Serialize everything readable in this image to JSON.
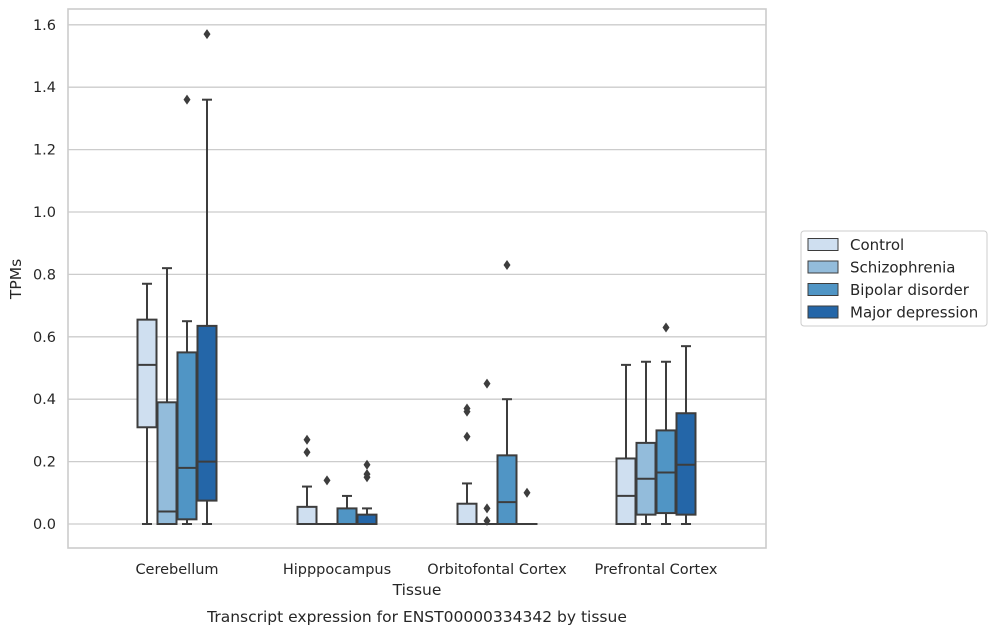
{
  "chart_data": {
    "type": "boxplot",
    "title": "Transcript expression for ENST00000334342 by tissue",
    "xlabel": "Tissue",
    "ylabel": "TPMs",
    "ylim": [
      -0.075,
      1.65
    ],
    "yticks": [
      "0.0",
      "0.2",
      "0.4",
      "0.6",
      "0.8",
      "1.0",
      "1.2",
      "1.4",
      "1.6"
    ],
    "grid": "horizontal",
    "legend_placement": "right",
    "categories": [
      "Cerebellum",
      "Hipppocampus",
      "Orbitofontal Cortex",
      "Prefrontal Cortex"
    ],
    "series": [
      {
        "name": "Control",
        "color": "#cfdff0",
        "boxes": [
          {
            "whislo": 0.0,
            "q1": 0.31,
            "med": 0.51,
            "q3": 0.655,
            "whishi": 0.77,
            "fliers": []
          },
          {
            "whislo": 0.0,
            "q1": 0.0,
            "med": 0.0,
            "q3": 0.055,
            "whishi": 0.12,
            "fliers": [
              0.23,
              0.27
            ]
          },
          {
            "whislo": 0.0,
            "q1": 0.0,
            "med": 0.0,
            "q3": 0.065,
            "whishi": 0.13,
            "fliers": [
              0.28,
              0.36,
              0.37
            ]
          },
          {
            "whislo": 0.0,
            "q1": 0.0,
            "med": 0.09,
            "q3": 0.21,
            "whishi": 0.51,
            "fliers": []
          }
        ]
      },
      {
        "name": "Schizophrenia",
        "color": "#93bcdb",
        "boxes": [
          {
            "whislo": 0.0,
            "q1": 0.0,
            "med": 0.04,
            "q3": 0.39,
            "whishi": 0.82,
            "fliers": []
          },
          {
            "whislo": 0.0,
            "q1": 0.0,
            "med": 0.0,
            "q3": 0.0,
            "whishi": 0.0,
            "fliers": [
              0.14
            ]
          },
          {
            "whislo": 0.0,
            "q1": 0.0,
            "med": 0.0,
            "q3": 0.0,
            "whishi": 0.0,
            "fliers": [
              0.01,
              0.05,
              0.45
            ]
          },
          {
            "whislo": 0.0,
            "q1": 0.03,
            "med": 0.145,
            "q3": 0.26,
            "whishi": 0.52,
            "fliers": []
          }
        ]
      },
      {
        "name": "Bipolar disorder",
        "color": "#5095c5",
        "boxes": [
          {
            "whislo": 0.0,
            "q1": 0.015,
            "med": 0.18,
            "q3": 0.55,
            "whishi": 0.65,
            "fliers": [
              1.36
            ]
          },
          {
            "whislo": 0.0,
            "q1": 0.0,
            "med": 0.0,
            "q3": 0.05,
            "whishi": 0.09,
            "fliers": []
          },
          {
            "whislo": 0.0,
            "q1": 0.0,
            "med": 0.07,
            "q3": 0.22,
            "whishi": 0.4,
            "fliers": [
              0.83
            ]
          },
          {
            "whislo": 0.0,
            "q1": 0.035,
            "med": 0.165,
            "q3": 0.3,
            "whishi": 0.52,
            "fliers": [
              0.63
            ]
          }
        ]
      },
      {
        "name": "Major depression",
        "color": "#2466a8",
        "boxes": [
          {
            "whislo": 0.0,
            "q1": 0.075,
            "med": 0.2,
            "q3": 0.635,
            "whishi": 1.36,
            "fliers": [
              1.57
            ]
          },
          {
            "whislo": 0.0,
            "q1": 0.0,
            "med": 0.0,
            "q3": 0.03,
            "whishi": 0.05,
            "fliers": [
              0.15,
              0.16,
              0.19
            ]
          },
          {
            "whislo": 0.0,
            "q1": 0.0,
            "med": 0.0,
            "q3": 0.0,
            "whishi": 0.0,
            "fliers": [
              0.1
            ]
          },
          {
            "whislo": 0.0,
            "q1": 0.03,
            "med": 0.19,
            "q3": 0.355,
            "whishi": 0.57,
            "fliers": []
          }
        ]
      }
    ]
  }
}
